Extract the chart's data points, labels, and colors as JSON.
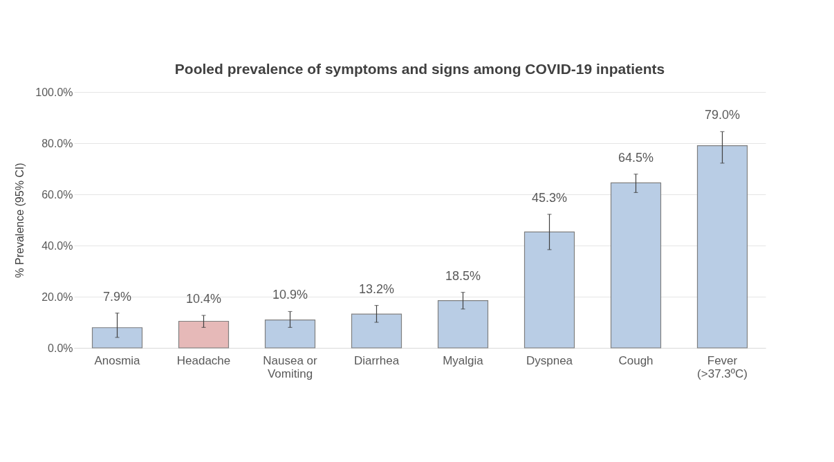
{
  "chart_data": {
    "type": "bar",
    "title": "Pooled prevalence of symptoms and signs among COVID-19 inpatients",
    "ylabel": "% Prevalence (95% CI)",
    "categories": [
      "Anosmia",
      "Headache",
      "Nausea or\nVomiting",
      "Diarrhea",
      "Myalgia",
      "Dyspnea",
      "Cough",
      "Fever\n(>37.3ºC)"
    ],
    "values": [
      7.9,
      10.4,
      10.9,
      13.2,
      18.5,
      45.3,
      64.5,
      79.0
    ],
    "colors": [
      "#b9cde5",
      "#e6b9b8",
      "#b9cde5",
      "#b9cde5",
      "#b9cde5",
      "#b9cde5",
      "#b9cde5",
      "#b9cde5"
    ],
    "errors": [
      [
        4.1,
        13.6
      ],
      [
        8.0,
        12.7
      ],
      [
        8.0,
        14.2
      ],
      [
        10.0,
        16.6
      ],
      [
        15.2,
        21.7
      ],
      [
        38.4,
        52.2
      ],
      [
        60.7,
        67.9
      ],
      [
        72.2,
        84.5
      ]
    ],
    "value_labels": [
      "7.9%",
      "10.4%",
      "10.9%",
      "13.2%",
      "18.5%",
      "45.3%",
      "64.5%",
      "79.0%"
    ],
    "ylim": [
      0,
      100
    ],
    "yticks": [
      {
        "value": 0,
        "label": "0.0%"
      },
      {
        "value": 20,
        "label": "20.0%"
      },
      {
        "value": 40,
        "label": "40.0%"
      },
      {
        "value": 60,
        "label": "60.0%"
      },
      {
        "value": 80,
        "label": "80.0%"
      },
      {
        "value": 100,
        "label": "100.0%"
      }
    ],
    "grid": "y"
  }
}
